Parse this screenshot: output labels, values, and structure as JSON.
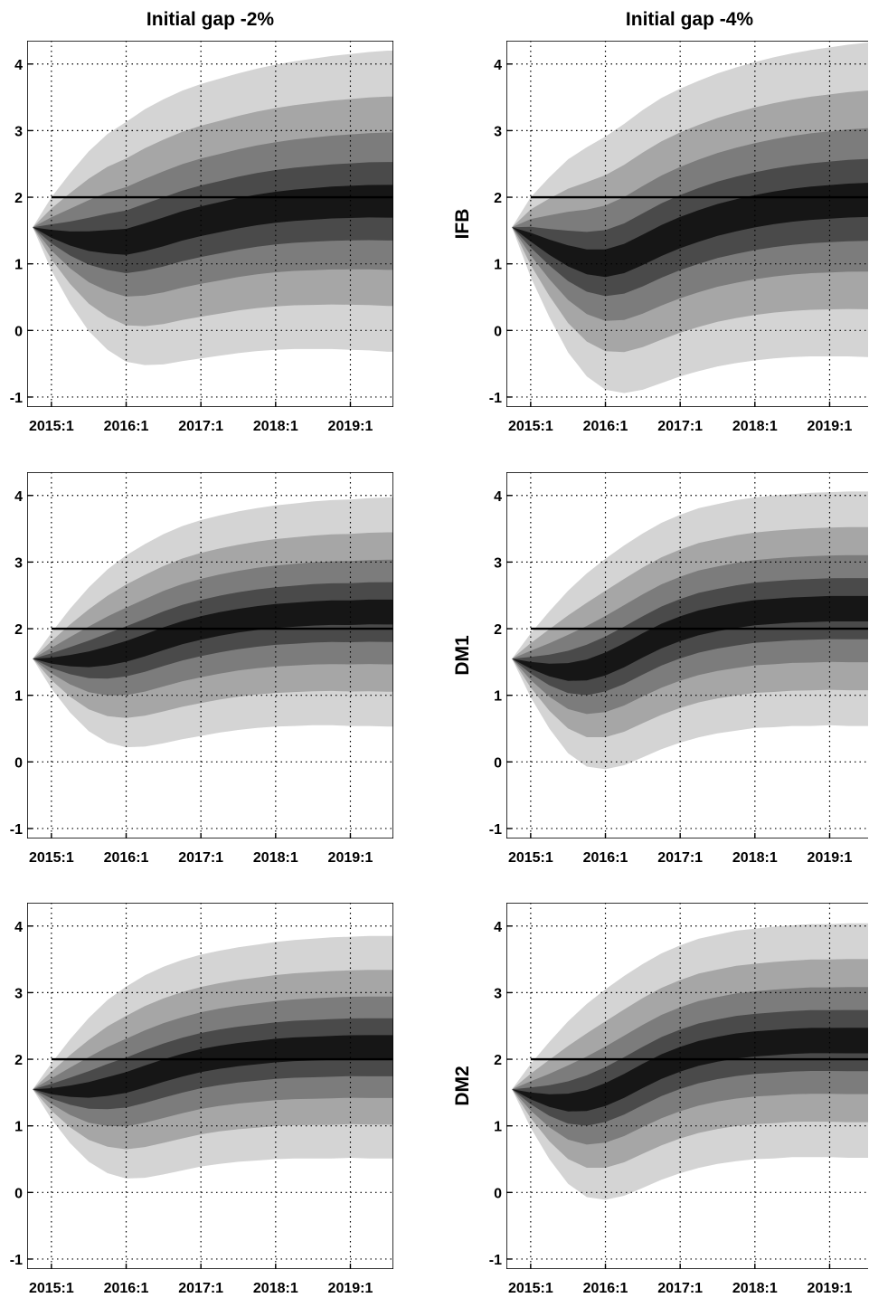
{
  "chart_data": {
    "type": "area",
    "layout": "grid 3 rows x 2 columns",
    "column_titles": [
      "Initial gap -2%",
      "Initial gap -4%"
    ],
    "row_labels": [
      "IFB",
      "DM1",
      "DM2"
    ],
    "x_tick_labels": [
      "2015:1",
      "2016:1",
      "2017:1",
      "2018:1",
      "2019:1"
    ],
    "y_tick_labels": [
      "4",
      "3",
      "2",
      "1",
      "0",
      "-1"
    ],
    "ylim": [
      -1.15,
      4.35
    ],
    "xlim": [
      -0.3,
      19.3
    ],
    "x": [
      0,
      1,
      2,
      3,
      4,
      5,
      6,
      7,
      8,
      9,
      10,
      11,
      12,
      13,
      14,
      15,
      16,
      17,
      18,
      19
    ],
    "grid": "dotted",
    "reference_line": 2,
    "band_colors": [
      "#d4d4d4",
      "#a6a6a6",
      "#7c7c7c",
      "#4a4a4a",
      "#161616"
    ],
    "panels": [
      {
        "row": "IFB",
        "column": "Initial gap -2%",
        "median": [
          1.55,
          1.45,
          1.38,
          1.34,
          1.33,
          1.33,
          1.4,
          1.48,
          1.57,
          1.64,
          1.7,
          1.76,
          1.81,
          1.85,
          1.88,
          1.9,
          1.92,
          1.93,
          1.94,
          1.94
        ],
        "half_widths": [
          0,
          0.55,
          0.98,
          1.35,
          1.62,
          1.8,
          1.92,
          1.99,
          2.03,
          2.06,
          2.08,
          2.1,
          2.12,
          2.14,
          2.16,
          2.18,
          2.2,
          2.22,
          2.24,
          2.26
        ]
      },
      {
        "row": "IFB",
        "column": "Initial gap -4%",
        "median": [
          1.55,
          1.4,
          1.25,
          1.12,
          1.03,
          1.01,
          1.08,
          1.21,
          1.35,
          1.47,
          1.57,
          1.66,
          1.73,
          1.79,
          1.84,
          1.88,
          1.91,
          1.93,
          1.95,
          1.96
        ],
        "half_widths": [
          0,
          0.6,
          1.05,
          1.45,
          1.72,
          1.9,
          2.02,
          2.1,
          2.14,
          2.16,
          2.18,
          2.2,
          2.22,
          2.24,
          2.26,
          2.28,
          2.3,
          2.32,
          2.34,
          2.36
        ]
      },
      {
        "row": "DM1",
        "column": "Initial gap -2%",
        "median": [
          1.55,
          1.52,
          1.52,
          1.54,
          1.59,
          1.66,
          1.75,
          1.85,
          1.94,
          2.01,
          2.07,
          2.12,
          2.16,
          2.19,
          2.21,
          2.23,
          2.24,
          2.24,
          2.25,
          2.25
        ],
        "half_widths": [
          0,
          0.42,
          0.78,
          1.08,
          1.3,
          1.44,
          1.52,
          1.57,
          1.6,
          1.62,
          1.63,
          1.64,
          1.65,
          1.66,
          1.67,
          1.68,
          1.69,
          1.7,
          1.71,
          1.72
        ]
      },
      {
        "row": "DM1",
        "column": "Initial gap -4%",
        "median": [
          1.55,
          1.45,
          1.38,
          1.35,
          1.38,
          1.47,
          1.6,
          1.75,
          1.89,
          2.0,
          2.09,
          2.15,
          2.2,
          2.24,
          2.26,
          2.28,
          2.29,
          2.3,
          2.3,
          2.3
        ],
        "half_widths": [
          0,
          0.48,
          0.88,
          1.22,
          1.45,
          1.58,
          1.65,
          1.68,
          1.7,
          1.71,
          1.72,
          1.72,
          1.73,
          1.73,
          1.74,
          1.74,
          1.75,
          1.75,
          1.76,
          1.76
        ]
      },
      {
        "row": "DM2",
        "column": "Initial gap -2%",
        "median": [
          1.55,
          1.52,
          1.52,
          1.54,
          1.59,
          1.65,
          1.74,
          1.83,
          1.91,
          1.98,
          2.03,
          2.07,
          2.1,
          2.13,
          2.15,
          2.16,
          2.17,
          2.18,
          2.18,
          2.18
        ],
        "half_widths": [
          0,
          0.42,
          0.78,
          1.08,
          1.3,
          1.44,
          1.52,
          1.56,
          1.58,
          1.59,
          1.6,
          1.61,
          1.62,
          1.63,
          1.64,
          1.65,
          1.66,
          1.66,
          1.67,
          1.67
        ]
      },
      {
        "row": "DM2",
        "column": "Initial gap -4%",
        "median": [
          1.55,
          1.45,
          1.38,
          1.35,
          1.38,
          1.47,
          1.6,
          1.75,
          1.89,
          2.0,
          2.09,
          2.15,
          2.2,
          2.23,
          2.25,
          2.27,
          2.28,
          2.28,
          2.28,
          2.28
        ],
        "half_widths": [
          0,
          0.48,
          0.88,
          1.22,
          1.45,
          1.58,
          1.65,
          1.68,
          1.7,
          1.71,
          1.72,
          1.72,
          1.73,
          1.73,
          1.74,
          1.74,
          1.75,
          1.75,
          1.76,
          1.76
        ]
      }
    ]
  }
}
